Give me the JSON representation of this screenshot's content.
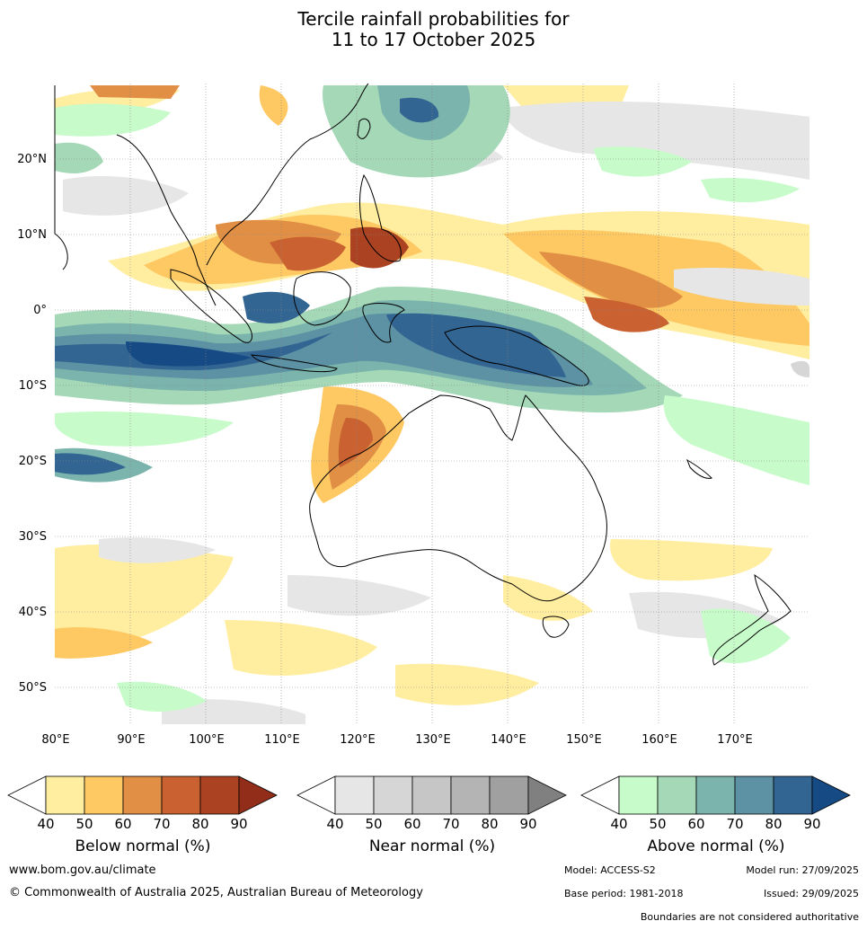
{
  "title": {
    "line1": "Tercile rainfall probabilities for",
    "line2": "11 to 17 October 2025"
  },
  "map": {
    "lat_ticks": [
      "20°N",
      "10°N",
      "0°",
      "10°S",
      "20°S",
      "30°S",
      "40°S",
      "50°S"
    ],
    "lon_ticks": [
      "80°E",
      "90°E",
      "100°E",
      "110°E",
      "120°E",
      "130°E",
      "140°E",
      "150°E",
      "160°E",
      "170°E"
    ],
    "extent": {
      "lon": [
        80,
        180
      ],
      "lat": [
        -55,
        30
      ]
    }
  },
  "colorbars": [
    {
      "label": "Below normal (%)",
      "ticks": [
        "40",
        "50",
        "60",
        "70",
        "80",
        "90"
      ],
      "colors": [
        "#ffeda0",
        "#fec863",
        "#e08f45",
        "#c96130",
        "#ab4322",
        "#912d18"
      ]
    },
    {
      "label": "Near normal (%)",
      "ticks": [
        "40",
        "50",
        "60",
        "70",
        "80",
        "90"
      ],
      "colors": [
        "#e6e6e6",
        "#d6d6d6",
        "#c6c6c6",
        "#b4b4b4",
        "#a0a0a0",
        "#808080"
      ]
    },
    {
      "label": "Above normal (%)",
      "ticks": [
        "40",
        "50",
        "60",
        "70",
        "80",
        "90"
      ],
      "colors": [
        "#c7fbca",
        "#a5d8b7",
        "#7ab4ac",
        "#5c92a4",
        "#336592",
        "#154a85"
      ]
    }
  ],
  "footer": {
    "website": "www.bom.gov.au/climate",
    "copyright": "© Commonwealth of Australia 2025, Australian Bureau of Meteorology",
    "model": "Model: ACCESS-S2",
    "model_run": "Model run: 27/09/2025",
    "base_period": "Base period: 1981-2018",
    "issued": "Issued: 29/09/2025",
    "disclaimer": "Boundaries are not considered authoritative"
  }
}
